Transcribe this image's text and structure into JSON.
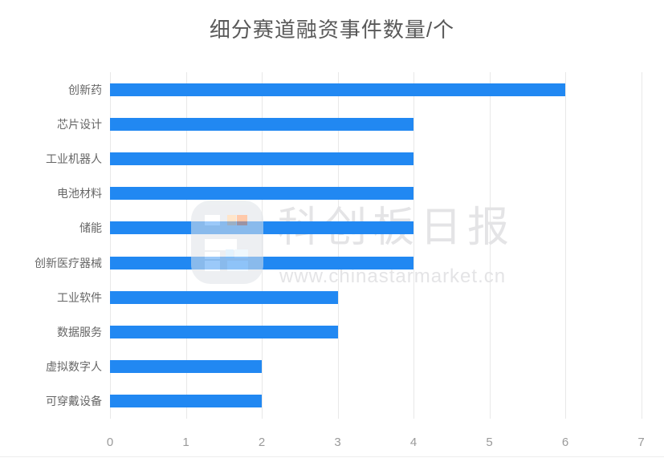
{
  "header": {
    "title": "细分赛道融资事件数量/个"
  },
  "watermark": {
    "brand": "科创板日报",
    "url": "www.chinastarmarket.cn",
    "logo": "starmarket-daily-logo"
  },
  "chart_data": {
    "type": "bar",
    "orientation": "horizontal",
    "title": "细分赛道融资事件数量/个",
    "categories": [
      "创新药",
      "芯片设计",
      "工业机器人",
      "电池材料",
      "储能",
      "创新医疗器械",
      "工业软件",
      "数据服务",
      "虚拟数字人",
      "可穿戴设备"
    ],
    "values": [
      6,
      4,
      4,
      4,
      4,
      4,
      3,
      3,
      2,
      2
    ],
    "xlim": [
      0,
      7
    ],
    "x_ticks": [
      "0",
      "1",
      "2",
      "3",
      "4",
      "5",
      "6",
      "7"
    ],
    "grid": true,
    "legend": false,
    "bar_color": "#2188f2"
  },
  "colors": {
    "bar": "#2188f2",
    "title_text": "#595959",
    "category_text": "#666666",
    "tick_text": "#9a9a9a",
    "gridline": "#e8e8e8",
    "watermark_text": "#e4e4e6",
    "bottom_rule": "#ededed"
  }
}
